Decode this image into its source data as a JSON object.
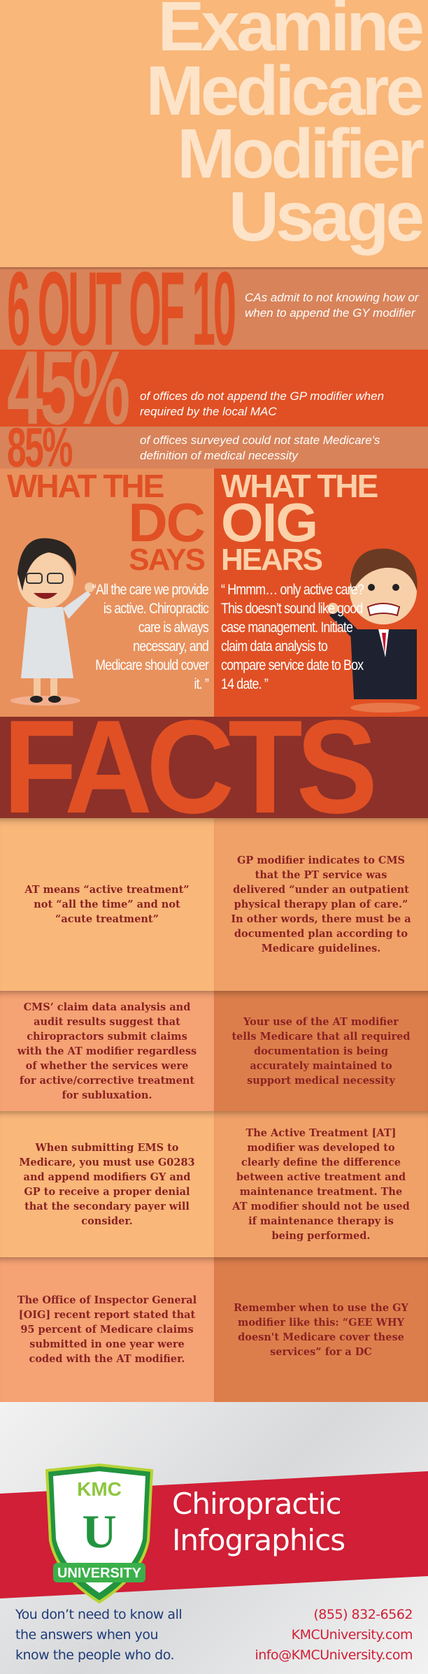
{
  "title": {
    "lines": [
      "Examine",
      "Medicare",
      "Modifier",
      "Usage"
    ]
  },
  "stats": [
    {
      "figure": "6 OUT OF 10",
      "text": "CAs admit to not knowing how or when to append the GY modifier"
    },
    {
      "figure": "45%",
      "text": "of offices do not append the GP modifier when required by the local MAC"
    },
    {
      "figure": "85%",
      "text": "of offices surveyed could not state Medicare's definition of medical necessity"
    }
  ],
  "dc": {
    "line1": "WHAT THE",
    "line2": "DC",
    "line3": "SAYS",
    "quote": "“All the care we provide is active. Chiropractic care is always necessary, and Medicare should cover it. ”"
  },
  "oig": {
    "line1": "WHAT THE",
    "line2": "OIG",
    "line3": "HEARS",
    "quote": "“ Hmmm… only active care? This doesn’t sound like good case management. Initiate claim data analysis to compare service date to Box 14 date. ”"
  },
  "facts_heading": "FACTS",
  "facts": [
    "AT means “active treatment” not “all the time” and not “acute treatment”",
    "GP modifier indicates to CMS that the PT service was delivered “under an outpatient physical therapy plan of care.” In other words, there must be a documented plan according to Medicare guidelines.",
    "CMS’ claim data analysis and audit results suggest that chiropractors submit claims with the AT modifier regardless of whether the services were for active/corrective treatment for subluxation.",
    "Your use of the AT modifier tells Medicare that all required documentation is being accurately maintained to support medical necessity",
    "When submitting EMS to Medicare, you must use G0283 and append modifiers GY and GP to receive a proper denial that the secondary payer will consider.",
    "The Active Treatment [AT] modifier was developed to clearly define the difference between active treatment and maintenance treatment. The AT modifier should not be used if maintenance therapy is being performed.",
    "The Office of Inspector General [OIG] recent report stated that 95 percent of Medicare claims submitted in one year were coded with the AT modifier.",
    "Remember when to use the GY modifier like this:  “GEE WHY doesn't Medicare cover these services” for a DC"
  ],
  "footer": {
    "logo": {
      "top": "KMC",
      "middle": "U",
      "bottom": "UNIVERSITY"
    },
    "brand_line1": "Chiropractic",
    "brand_line2": "Infographics",
    "tagline": "You don’t need to know all the answers when you know the people who do.",
    "phone": "(855) 832-6562",
    "website": "KMCUniversity.com",
    "email": "info@KMCUniversity.com"
  },
  "colors": {
    "title_bg": "#f9b77a",
    "light_band": "#d8835a",
    "dark_band": "#e05024",
    "facts_bg": "#8c3029",
    "fact_text": "#8a2222",
    "footer_red": "#d01f36",
    "footer_blue": "#1f3c78",
    "logo_green": "#22943f"
  }
}
